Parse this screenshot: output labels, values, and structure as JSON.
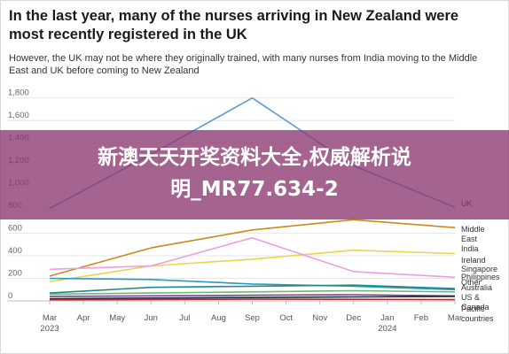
{
  "title": "In the last year, many of the nurses arriving in New Zealand were most recently registered in the UK",
  "subtitle": "However, the UK may not be where they originally trained, with many nurses from India moving to the Middle East and UK before coming to New Zealand",
  "overlay": {
    "line1": "新澳天天开奖资料大全,权威解析说",
    "line2": "明_MR77.634-2"
  },
  "chart_data": {
    "type": "line",
    "x": [
      "Mar 2023",
      "Jun 2023",
      "Sep 2023",
      "Dec 2023",
      "Mar 2024"
    ],
    "x_ticks": [
      {
        "month": "Mar",
        "year": "2023"
      },
      {
        "month": "Apr",
        "year": ""
      },
      {
        "month": "May",
        "year": ""
      },
      {
        "month": "Jun",
        "year": ""
      },
      {
        "month": "Jul",
        "year": ""
      },
      {
        "month": "Aug",
        "year": ""
      },
      {
        "month": "Sep",
        "year": ""
      },
      {
        "month": "Oct",
        "year": ""
      },
      {
        "month": "Nov",
        "year": ""
      },
      {
        "month": "Dec",
        "year": ""
      },
      {
        "month": "Jan",
        "year": "2024"
      },
      {
        "month": "Feb",
        "year": ""
      },
      {
        "month": "Mar",
        "year": ""
      }
    ],
    "y_ticks": [
      "0",
      "200",
      "400",
      "600",
      "800",
      "1,000",
      "1,200",
      "1,400",
      "1,600",
      "1,800"
    ],
    "ylim": [
      0,
      1900
    ],
    "grid": true,
    "series": [
      {
        "name": "UK",
        "color": "#5b9bd5",
        "values": [
          820,
          1300,
          1800,
          1200,
          830
        ]
      },
      {
        "name": "Middle East",
        "color": "#c98b1a",
        "values": [
          220,
          470,
          630,
          720,
          650
        ]
      },
      {
        "name": "India",
        "color": "#e8d64a",
        "values": [
          170,
          310,
          370,
          450,
          420
        ]
      },
      {
        "name": "Ireland",
        "color": "#ef9de0",
        "values": [
          280,
          310,
          560,
          260,
          210
        ]
      },
      {
        "name": "Singapore",
        "color": "#2a9bbf",
        "values": [
          200,
          190,
          150,
          130,
          100
        ]
      },
      {
        "name": "Philippines",
        "color": "#1f8a85",
        "values": [
          70,
          120,
          130,
          140,
          110
        ]
      },
      {
        "name": "Other",
        "color": "#6db86b",
        "values": [
          60,
          70,
          80,
          90,
          80
        ]
      },
      {
        "name": "Australia",
        "color": "#7b3fa0",
        "values": [
          40,
          45,
          50,
          55,
          45
        ]
      },
      {
        "name": "US & Canada",
        "color": "#1b2a3a",
        "values": [
          20,
          25,
          30,
          35,
          40
        ]
      },
      {
        "name": "Pacific countries",
        "color": "#a93226",
        "values": [
          10,
          12,
          15,
          14,
          12
        ]
      }
    ]
  }
}
